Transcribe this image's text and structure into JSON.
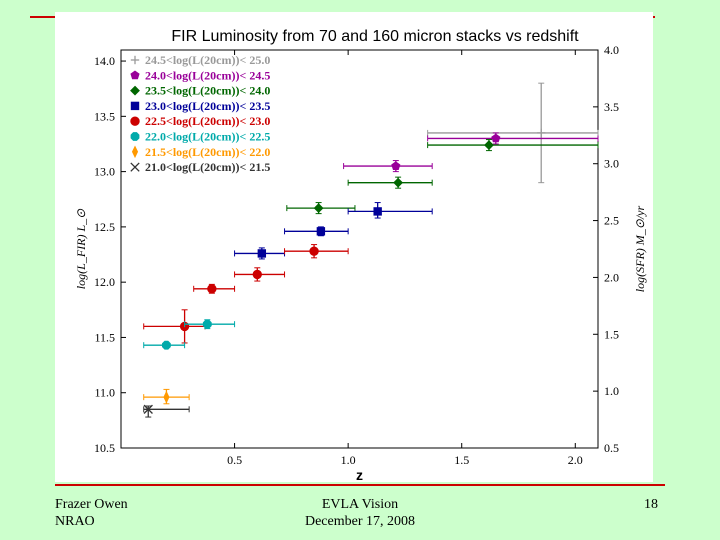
{
  "footer": {
    "author": "Frazer Owen",
    "org": "NRAO",
    "talk": "EVLA Vision",
    "date": "December 17, 2008",
    "page": "18"
  },
  "colors": {
    "background": "#ccffcc",
    "rule": "#cc0000"
  },
  "chart_data": {
    "type": "scatter",
    "title": "FIR Luminosity from 70 and 160 micron stacks vs redshift",
    "xlabel": "z",
    "ylabel": "log(L_FIR) L_⊙",
    "y2label": "log(SFR) M_⊙/yr",
    "xlim": [
      0.0,
      2.1
    ],
    "ylim": [
      10.5,
      14.1
    ],
    "y2lim": [
      0.5,
      4.0
    ],
    "x_ticks": [
      "0.5",
      "1.0",
      "1.5",
      "2.0"
    ],
    "y_ticks": [
      "10.5",
      "11.0",
      "11.5",
      "12.0",
      "12.5",
      "13.0",
      "13.5",
      "14.0"
    ],
    "y2_ticks": [
      "0.5",
      "1.0",
      "1.5",
      "2.0",
      "2.5",
      "3.0",
      "3.5",
      "4.0"
    ],
    "legend_position": "top-left",
    "series": [
      {
        "name": "24.5<log(L(20cm))< 25.0",
        "color": "#999999",
        "marker": "plus",
        "points": [
          {
            "x": 1.85,
            "y": 13.35,
            "xerr": [
              1.35,
              2.1
            ],
            "yerr": [
              12.9,
              13.8
            ]
          }
        ]
      },
      {
        "name": "24.0<log(L(20cm))< 24.5",
        "color": "#990099",
        "marker": "pentagon",
        "points": [
          {
            "x": 1.21,
            "y": 13.05,
            "xerr": [
              0.98,
              1.37
            ],
            "yerr": [
              13.0,
              13.1
            ]
          },
          {
            "x": 1.65,
            "y": 13.3,
            "xerr": [
              1.35,
              2.1
            ],
            "yerr": [
              13.25,
              13.35
            ]
          }
        ]
      },
      {
        "name": "23.5<log(L(20cm))< 24.0",
        "color": "#006600",
        "marker": "diamond",
        "points": [
          {
            "x": 0.87,
            "y": 12.67,
            "xerr": [
              0.73,
              1.03
            ],
            "yerr": [
              12.62,
              12.72
            ]
          },
          {
            "x": 1.22,
            "y": 12.9,
            "xerr": [
              1.0,
              1.37
            ],
            "yerr": [
              12.85,
              12.95
            ]
          },
          {
            "x": 1.62,
            "y": 13.24,
            "xerr": [
              1.35,
              2.1
            ],
            "yerr": [
              13.19,
              13.29
            ]
          }
        ]
      },
      {
        "name": "23.0<log(L(20cm))< 23.5",
        "color": "#000099",
        "marker": "square",
        "points": [
          {
            "x": 0.62,
            "y": 12.26,
            "xerr": [
              0.5,
              0.72
            ],
            "yerr": [
              12.21,
              12.31
            ]
          },
          {
            "x": 0.88,
            "y": 12.46,
            "xerr": [
              0.72,
              1.0
            ],
            "yerr": [
              12.42,
              12.5
            ]
          },
          {
            "x": 1.13,
            "y": 12.64,
            "xerr": [
              1.0,
              1.37
            ],
            "yerr": [
              12.58,
              12.72
            ]
          }
        ]
      },
      {
        "name": "22.5<log(L(20cm))< 23.0",
        "color": "#cc0000",
        "marker": "circle",
        "points": [
          {
            "x": 0.28,
            "y": 11.6,
            "xerr": [
              0.1,
              0.37
            ],
            "yerr": [
              11.45,
              11.75
            ]
          },
          {
            "x": 0.4,
            "y": 11.94,
            "xerr": [
              0.32,
              0.5
            ],
            "yerr": [
              11.9,
              11.98
            ]
          },
          {
            "x": 0.6,
            "y": 12.07,
            "xerr": [
              0.5,
              0.72
            ],
            "yerr": [
              12.01,
              12.13
            ]
          },
          {
            "x": 0.85,
            "y": 12.28,
            "xerr": [
              0.72,
              1.0
            ],
            "yerr": [
              12.22,
              12.34
            ]
          }
        ]
      },
      {
        "name": "22.0<log(L(20cm))< 22.5",
        "color": "#00aaaa",
        "marker": "octagon",
        "points": [
          {
            "x": 0.2,
            "y": 11.43,
            "xerr": [
              0.1,
              0.28
            ],
            "yerr": [
              11.41,
              11.45
            ]
          },
          {
            "x": 0.38,
            "y": 11.62,
            "xerr": [
              0.28,
              0.5
            ],
            "yerr": [
              11.58,
              11.66
            ]
          }
        ]
      },
      {
        "name": "21.5<log(L(20cm))< 22.0",
        "color": "#ff9900",
        "marker": "thin-diamond",
        "points": [
          {
            "x": 0.2,
            "y": 10.96,
            "xerr": [
              0.1,
              0.3
            ],
            "yerr": [
              10.9,
              11.03
            ]
          }
        ]
      },
      {
        "name": "21.0<log(L(20cm))< 21.5",
        "color": "#333333",
        "marker": "x",
        "points": [
          {
            "x": 0.12,
            "y": 10.85,
            "xerr": [
              0.1,
              0.3
            ],
            "yerr": [
              10.78,
              10.88
            ]
          }
        ]
      }
    ]
  }
}
